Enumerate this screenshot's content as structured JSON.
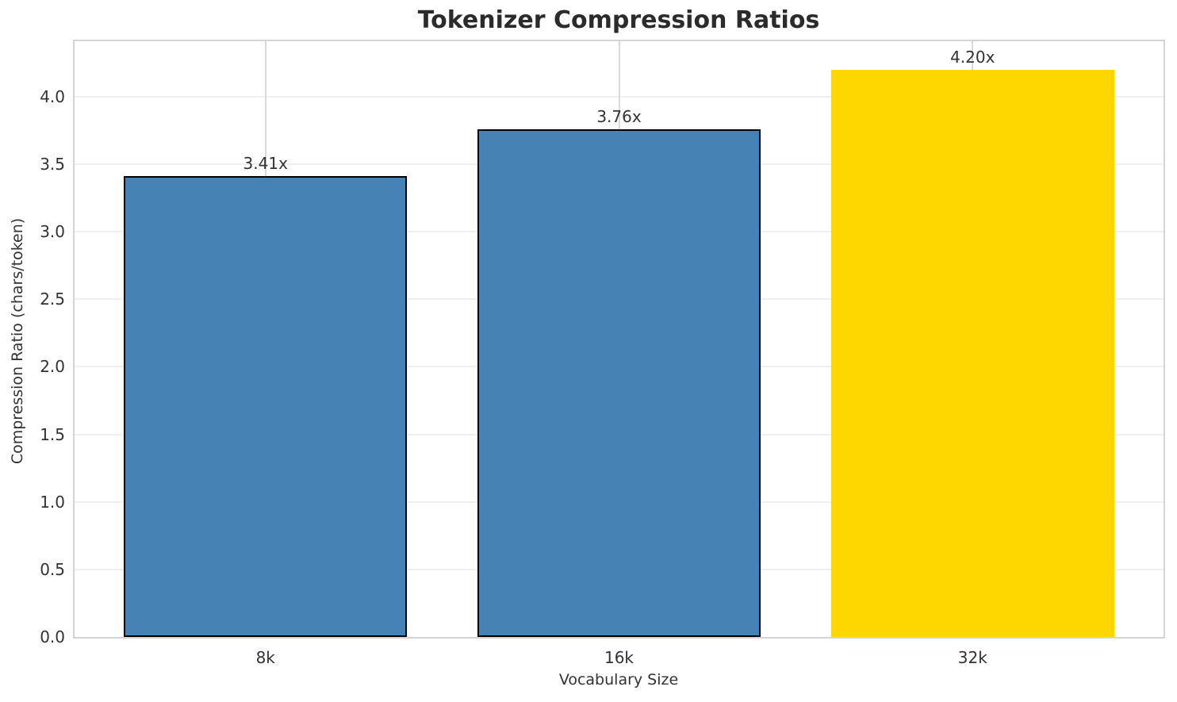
{
  "chart_data": {
    "type": "bar",
    "title": "Tokenizer Compression Ratios",
    "xlabel": "Vocabulary Size",
    "ylabel": "Compression Ratio (chars/token)",
    "categories": [
      "8k",
      "16k",
      "32k"
    ],
    "values": [
      3.41,
      3.76,
      4.2
    ],
    "bar_labels": [
      "3.41x",
      "3.76x",
      "4.20x"
    ],
    "bar_colors": [
      "#4682B4",
      "#4682B4",
      "#FFD700"
    ],
    "bar_edge_colors": [
      "#000000",
      "#000000",
      null
    ],
    "ylim": [
      0,
      4.41
    ],
    "yticks": [
      0,
      0.5,
      1,
      1.5,
      2,
      2.5,
      3,
      3.5,
      4
    ],
    "ytick_labels": [
      "0.0",
      "0.5",
      "1.0",
      "1.5",
      "2.0",
      "2.5",
      "3.0",
      "3.5",
      "4.0"
    ],
    "grid": true,
    "legend_position": "none"
  },
  "colors": {
    "background": "#ffffff",
    "text": "#333333",
    "title_text": "#2b2b2b",
    "spine": "#d4d4d4",
    "hgrid": "#efefef",
    "vgrid": "#d9d9d9",
    "bar_default": "#4682B4",
    "bar_highlight": "#FFD700",
    "bar_edge": "#000000"
  }
}
